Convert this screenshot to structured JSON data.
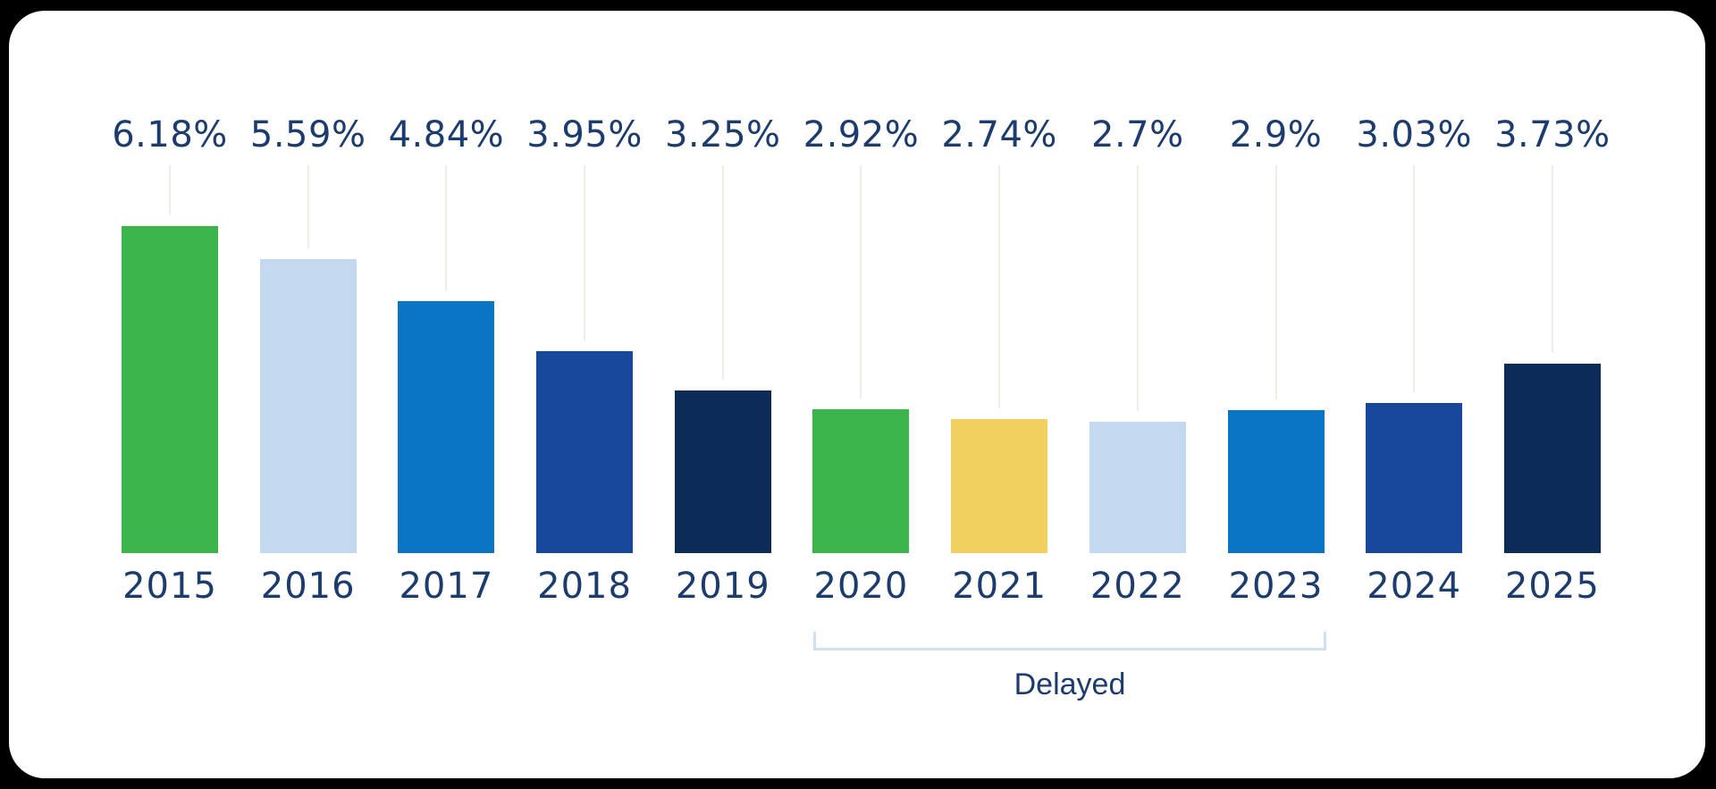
{
  "chart_data": {
    "type": "bar",
    "unit": "%",
    "categories": [
      "2015",
      "2016",
      "2017",
      "2018",
      "2019",
      "2020",
      "2021",
      "2022",
      "2023",
      "2024",
      "2025"
    ],
    "values": [
      6.18,
      5.59,
      4.84,
      3.95,
      3.25,
      2.92,
      2.74,
      2.7,
      2.9,
      3.03,
      3.73
    ],
    "value_labels": [
      "6.18%",
      "5.59%",
      "4.84%",
      "3.95%",
      "3.25%",
      "2.92%",
      "2.74%",
      "2.7%",
      "2.9%",
      "3.03%",
      "3.73%"
    ],
    "bar_colors": [
      "#3cb44c",
      "#c3d9ef",
      "#0a75c2",
      "#17489c",
      "#0d2b57",
      "#3cb44c",
      "#f2d05e",
      "#c3d9ef",
      "#0a75c2",
      "#17489c",
      "#0d2b57"
    ],
    "baseline_clipped": true,
    "grid": false,
    "legend": false,
    "annotation": {
      "label": "Delayed",
      "from_category": "2020",
      "to_category": "2023"
    }
  },
  "colors": {
    "page_background": "#000000",
    "card_background": "#ffffff",
    "text_navy": "#1d3c6e",
    "connector_line": "#f0ede8",
    "bracket": "#cfe0f2",
    "green": "#3cb44c",
    "light_blue": "#c3d9ef",
    "blue": "#0a75c2",
    "dark_blue": "#17489c",
    "navy": "#0d2b57",
    "yellow": "#f2d05e"
  }
}
